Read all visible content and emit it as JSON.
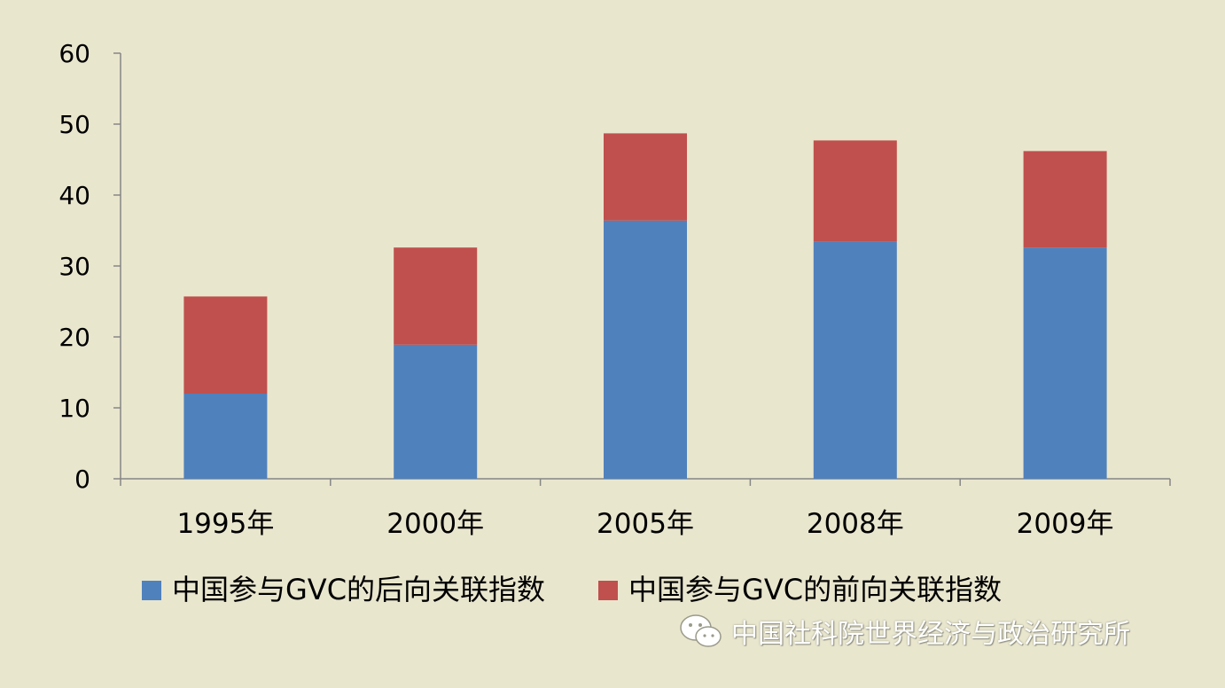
{
  "chart_data": {
    "type": "bar",
    "stacked": true,
    "title": "",
    "xlabel": "",
    "ylabel": "",
    "ylim": [
      0,
      60
    ],
    "yticks": [
      0,
      10,
      20,
      30,
      40,
      50,
      60
    ],
    "categories": [
      "1995年",
      "2000年",
      "2005年",
      "2008年",
      "2009年"
    ],
    "series": [
      {
        "name": "中国参与GVC的后向关联指数",
        "color": "#4f81bd",
        "values": [
          12.0,
          18.9,
          36.4,
          33.4,
          32.6
        ]
      },
      {
        "name": "中国参与GVC的前向关联指数",
        "color": "#c0504d",
        "values": [
          13.7,
          13.7,
          12.3,
          14.3,
          13.6
        ]
      }
    ],
    "grid": false,
    "legend_position": "bottom"
  },
  "watermark": {
    "icon": "wechat-icon",
    "text": "中国社科院世界经济与政治研究所"
  }
}
